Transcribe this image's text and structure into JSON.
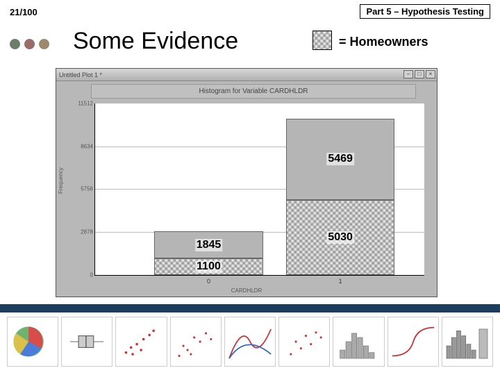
{
  "page_number": "21/100",
  "part_label": "Part 5 – Hypothesis Testing",
  "title": "Some Evidence",
  "legend_label": "= Homeowners",
  "bullet_colors": [
    "#6b7d6b",
    "#9a6b6b",
    "#9a8a6b"
  ],
  "accent_color": "#1d3d5c",
  "plot": {
    "window_title": "Untitled Plot 1 *",
    "chart_title": "Histogram for Variable CARDHLDR",
    "ylabel": "Frequency",
    "xlabel": "CARDHLDR",
    "ymax": 11500,
    "yticks": [
      {
        "label": "11512",
        "value": 11512
      },
      {
        "label": "8634",
        "value": 8634
      },
      {
        "label": "5756",
        "value": 5756
      },
      {
        "label": "2878",
        "value": 2878
      },
      {
        "label": "0",
        "value": 0
      }
    ],
    "xticks": [
      "0",
      "1"
    ],
    "bars": [
      {
        "top_value": 1845,
        "bottom_value": 1100,
        "top_label": "1845",
        "bottom_label": "1100"
      },
      {
        "top_value": 5469,
        "bottom_value": 5030,
        "top_label": "5469",
        "bottom_label": "5030"
      }
    ],
    "bar_fill_top": "#b5b5b5",
    "bar_fill_bottom_pattern": "hatch",
    "grid_color": "#bbbbbb",
    "plot_bg": "#ffffff",
    "window_bg": "#b8b8b8"
  },
  "thumbs": [
    {
      "type": "pie"
    },
    {
      "type": "boxplot"
    },
    {
      "type": "scatter_multi"
    },
    {
      "type": "scatter_red"
    },
    {
      "type": "kernel"
    },
    {
      "type": "scatter_red2"
    },
    {
      "type": "histogram"
    },
    {
      "type": "logistic"
    },
    {
      "type": "hist_bar"
    }
  ]
}
